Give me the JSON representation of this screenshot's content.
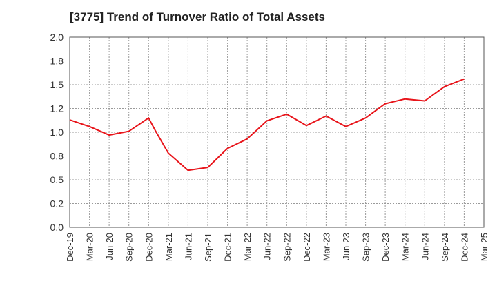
{
  "chart_data": {
    "type": "line",
    "title": "[3775]  Trend of Turnover Ratio of Total Assets",
    "xlabel": "",
    "ylabel": "",
    "ylim": [
      0.0,
      2.0
    ],
    "yticks": [
      "0.0",
      "0.2",
      "0.5",
      "0.8",
      "1.0",
      "1.2",
      "1.5",
      "1.8",
      "2.0"
    ],
    "xticks": [
      "Dec-19",
      "Mar-20",
      "Jun-20",
      "Sep-20",
      "Dec-20",
      "Mar-21",
      "Jun-21",
      "Sep-21",
      "Dec-21",
      "Mar-22",
      "Jun-22",
      "Sep-22",
      "Dec-22",
      "Mar-23",
      "Jun-23",
      "Sep-23",
      "Dec-23",
      "Mar-24",
      "Jun-24",
      "Sep-24",
      "Dec-24",
      "Mar-25"
    ],
    "grid": true,
    "legend": "none",
    "series": [
      {
        "color": "#e8141a",
        "x": [
          "Dec-19",
          "Mar-20",
          "Jun-20",
          "Sep-20",
          "Dec-20",
          "Jan-21",
          "Mar-21",
          "Jun-21",
          "Sep-21",
          "Dec-21",
          "Mar-22",
          "Jun-22",
          "Sep-22",
          "Dec-22",
          "Mar-23",
          "Jun-23",
          "Sep-23",
          "Dec-23",
          "Mar-24",
          "Jun-24",
          "Sep-24",
          "Dec-24"
        ],
        "values": [
          1.13,
          1.06,
          0.97,
          1.01,
          1.15,
          1.02,
          0.78,
          0.6,
          0.63,
          0.83,
          0.93,
          1.12,
          1.19,
          1.07,
          1.17,
          1.06,
          1.15,
          1.3,
          1.35,
          1.33,
          1.48,
          1.56
        ]
      }
    ]
  }
}
